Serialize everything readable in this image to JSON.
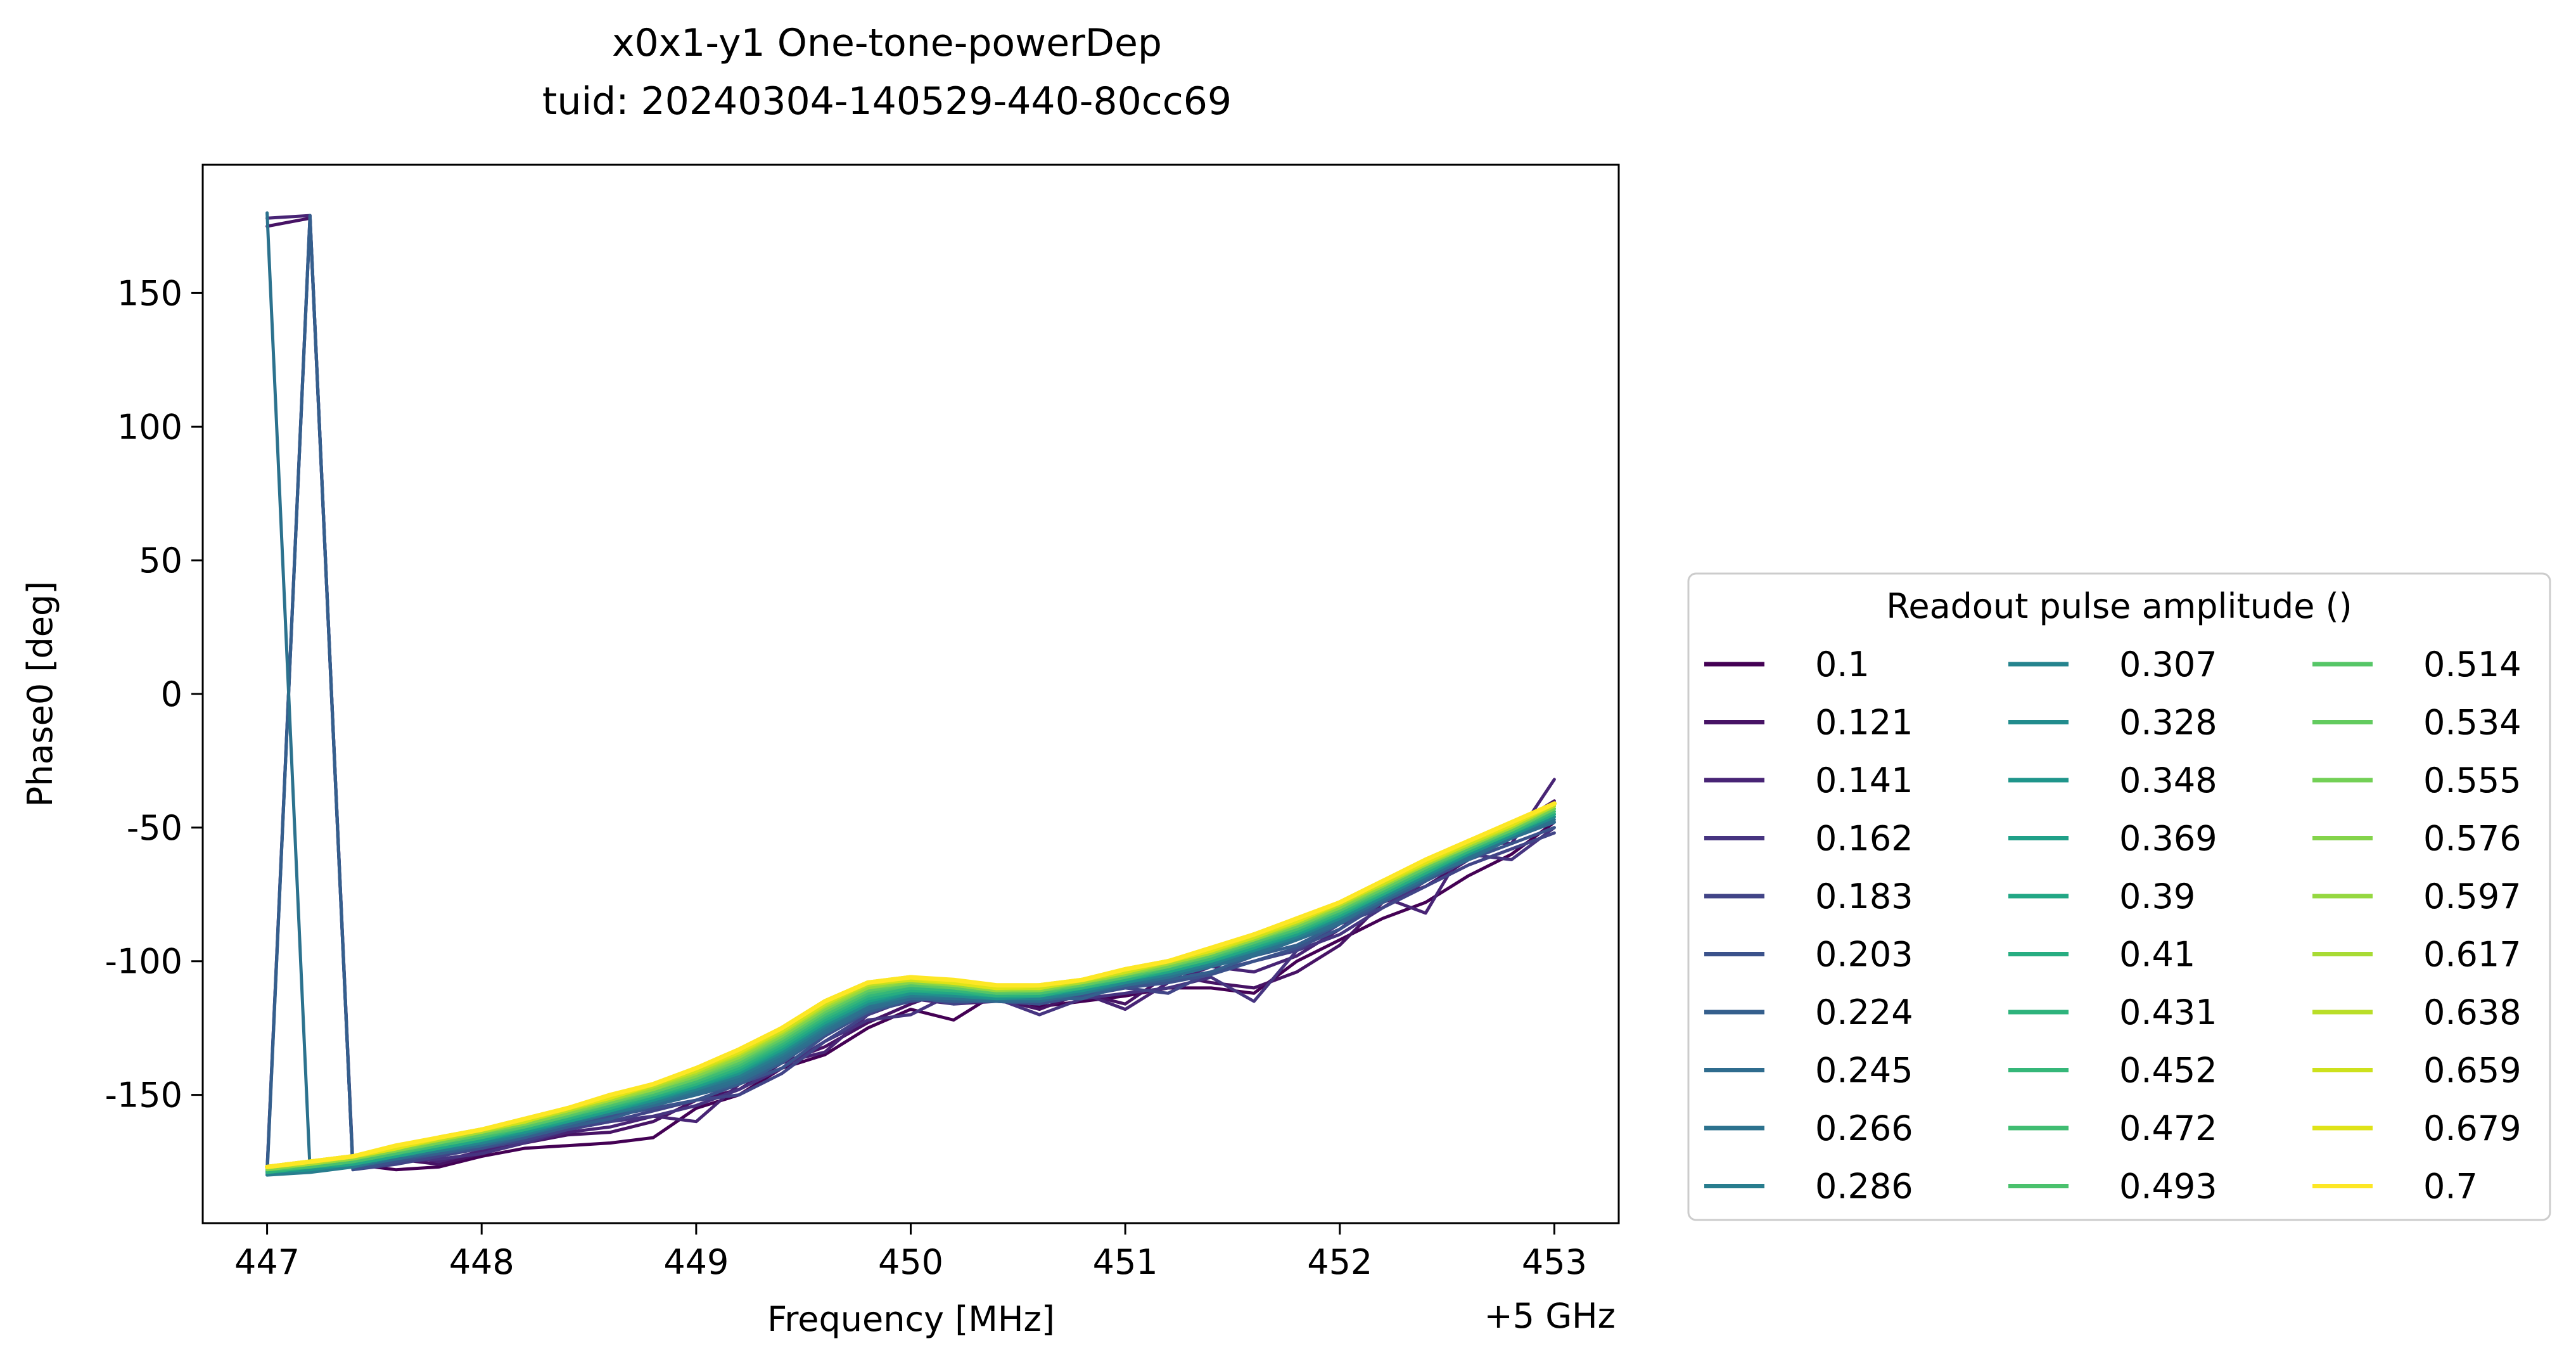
{
  "chart_data": {
    "type": "line",
    "title": "x0x1-y1 One-tone-powerDep",
    "subtitle": "tuid: 20240304-140529-440-80cc69",
    "xlabel": "Frequency [MHz]",
    "x_offset_label": "+5 GHz",
    "ylabel": "Phase0 [deg]",
    "xlim": [
      446.7,
      453.3
    ],
    "ylim": [
      -198,
      198
    ],
    "xticks": [
      447,
      448,
      449,
      450,
      451,
      452,
      453
    ],
    "xtick_labels": [
      "447",
      "448",
      "449",
      "450",
      "451",
      "452",
      "453"
    ],
    "yticks": [
      150,
      100,
      50,
      0,
      -50,
      -100,
      -150
    ],
    "ytick_labels": [
      "150",
      "100",
      "50",
      "0",
      "-50",
      "-100",
      "-150"
    ],
    "grid": false,
    "legend": {
      "title": "Readout pulse amplitude ()",
      "placement": "right, outside, lower",
      "columns": 3
    },
    "x": [
      447.0,
      447.2,
      447.4,
      447.6,
      447.8,
      448.0,
      448.2,
      448.4,
      448.6,
      448.8,
      449.0,
      449.2,
      449.4,
      449.6,
      449.8,
      450.0,
      450.2,
      450.4,
      450.6,
      450.8,
      451.0,
      451.2,
      451.4,
      451.6,
      451.8,
      452.0,
      452.2,
      452.4,
      452.6,
      452.8,
      453.0
    ],
    "series": [
      {
        "name": "0.1",
        "color": "#440154",
        "values": [
          -179,
          -178,
          -176,
          -178,
          -177,
          -173,
          -170,
          -169,
          -168,
          -166,
          -155,
          -150,
          -140,
          -135,
          -125,
          -118,
          -122,
          -112,
          -117,
          -115,
          -113,
          -110,
          -110,
          -112,
          -100,
          -92,
          -84,
          -78,
          -68,
          -60,
          -48
        ]
      },
      {
        "name": "0.121",
        "color": "#471365",
        "values": [
          175,
          178,
          -176,
          -174,
          -176,
          -172,
          -168,
          -165,
          -164,
          -160,
          -152,
          -148,
          -138,
          -132,
          -123,
          -116,
          -110,
          -114,
          -118,
          -112,
          -116,
          -105,
          -108,
          -110,
          -104,
          -94,
          -78,
          -72,
          -62,
          -50,
          -40
        ]
      },
      {
        "name": "0.141",
        "color": "#482475",
        "values": [
          178,
          179,
          -178,
          -172,
          -175,
          -171,
          -168,
          -164,
          -162,
          -158,
          -160,
          -146,
          -138,
          -134,
          -120,
          -114,
          -116,
          -115,
          -116,
          -112,
          -118,
          -108,
          -102,
          -104,
          -98,
          -88,
          -76,
          -82,
          -55,
          -56,
          -32
        ]
      },
      {
        "name": "0.162",
        "color": "#463480",
        "values": [
          -178,
          179,
          -177,
          -175,
          -174,
          -172,
          -168,
          -163,
          -160,
          -158,
          -154,
          -148,
          -140,
          -130,
          -122,
          -120,
          -112,
          -114,
          -120,
          -114,
          -112,
          -110,
          -106,
          -115,
          -96,
          -90,
          -80,
          -70,
          -60,
          -62,
          -50
        ]
      },
      {
        "name": "0.183",
        "color": "#414487",
        "values": [
          -178,
          178,
          -178,
          -176,
          -173,
          -170,
          -167,
          -163,
          -160,
          -156,
          -152,
          -150,
          -142,
          -130,
          -120,
          -113,
          -116,
          -114,
          -116,
          -112,
          -110,
          -112,
          -104,
          -100,
          -96,
          -86,
          -80,
          -72,
          -64,
          -58,
          -52
        ]
      },
      {
        "name": "0.203",
        "color": "#3b528b",
        "values": [
          -179,
          178,
          -178,
          -175,
          -172,
          -170,
          -166,
          -162,
          -158,
          -155,
          -152,
          -146,
          -140,
          -128,
          -119,
          -115,
          -113,
          -115,
          -116,
          -113,
          -110,
          -108,
          -105,
          -100,
          -95,
          -88,
          -78,
          -70,
          -62,
          -56,
          -50
        ]
      },
      {
        "name": "0.224",
        "color": "#355f8d",
        "values": [
          -180,
          179,
          -177,
          -174,
          -172,
          -169,
          -166,
          -162,
          -159,
          -154,
          -150,
          -146,
          -138,
          -127,
          -119,
          -114,
          -115,
          -115,
          -114,
          -114,
          -109,
          -107,
          -104,
          -98,
          -94,
          -86,
          -78,
          -70,
          -60,
          -54,
          -48
        ]
      },
      {
        "name": "0.245",
        "color": "#2f6c8e",
        "values": [
          -179,
          -178,
          -177,
          -174,
          -171,
          -169,
          -165,
          -161,
          -157,
          -154,
          -150,
          -145,
          -137,
          -127,
          -118,
          -114,
          -114,
          -115,
          -115,
          -112,
          -109,
          -106,
          -102,
          -98,
          -92,
          -86,
          -76,
          -68,
          -62,
          -54,
          -48
        ]
      },
      {
        "name": "0.266",
        "color": "#2c728e",
        "values": [
          180,
          -178,
          -176,
          -174,
          -171,
          -168,
          -165,
          -161,
          -157,
          -153,
          -149,
          -144,
          -136,
          -126,
          -117,
          -113,
          -114,
          -114,
          -114,
          -112,
          -108,
          -106,
          -102,
          -97,
          -92,
          -85,
          -77,
          -69,
          -61,
          -54,
          -47
        ]
      },
      {
        "name": "0.286",
        "color": "#287d8e",
        "values": [
          -180,
          -179,
          -177,
          -173,
          -171,
          -168,
          -165,
          -160,
          -157,
          -153,
          -148,
          -143,
          -135,
          -125,
          -116,
          -113,
          -113,
          -114,
          -114,
          -112,
          -108,
          -105,
          -101,
          -96,
          -91,
          -84,
          -76,
          -68,
          -60,
          -53,
          -46
        ]
      },
      {
        "name": "0.307",
        "color": "#25848e",
        "values": [
          -179,
          -178,
          -176,
          -173,
          -170,
          -168,
          -164,
          -160,
          -156,
          -152,
          -148,
          -142,
          -134,
          -124,
          -116,
          -112,
          -113,
          -114,
          -114,
          -111,
          -108,
          -105,
          -101,
          -96,
          -91,
          -84,
          -76,
          -68,
          -60,
          -53,
          -46
        ]
      },
      {
        "name": "0.328",
        "color": "#228c8d",
        "values": [
          -179,
          -178,
          -176,
          -173,
          -170,
          -167,
          -164,
          -160,
          -156,
          -152,
          -147,
          -142,
          -134,
          -124,
          -116,
          -112,
          -113,
          -114,
          -113,
          -111,
          -108,
          -104,
          -100,
          -96,
          -90,
          -84,
          -76,
          -68,
          -60,
          -53,
          -46
        ]
      },
      {
        "name": "0.348",
        "color": "#1f958b",
        "values": [
          -179,
          -178,
          -176,
          -173,
          -170,
          -167,
          -164,
          -160,
          -156,
          -152,
          -147,
          -142,
          -133,
          -123,
          -115,
          -112,
          -112,
          -114,
          -113,
          -111,
          -107,
          -104,
          -100,
          -95,
          -90,
          -83,
          -75,
          -67,
          -60,
          -53,
          -45
        ]
      },
      {
        "name": "0.369",
        "color": "#1fa088",
        "values": [
          -179,
          -177,
          -176,
          -173,
          -170,
          -167,
          -163,
          -160,
          -156,
          -151,
          -147,
          -141,
          -133,
          -123,
          -115,
          -111,
          -112,
          -113,
          -113,
          -110,
          -107,
          -104,
          -100,
          -95,
          -90,
          -83,
          -75,
          -67,
          -59,
          -52,
          -45
        ]
      },
      {
        "name": "0.39",
        "color": "#22a785",
        "values": [
          -179,
          -177,
          -176,
          -173,
          -170,
          -167,
          -163,
          -159,
          -155,
          -151,
          -146,
          -141,
          -132,
          -122,
          -114,
          -111,
          -112,
          -113,
          -113,
          -110,
          -107,
          -104,
          -100,
          -95,
          -89,
          -83,
          -75,
          -67,
          -59,
          -52,
          -45
        ]
      },
      {
        "name": "0.41",
        "color": "#27ad81",
        "values": [
          -179,
          -177,
          -175,
          -172,
          -169,
          -166,
          -163,
          -159,
          -155,
          -151,
          -146,
          -140,
          -132,
          -122,
          -114,
          -111,
          -111,
          -113,
          -113,
          -110,
          -107,
          -103,
          -99,
          -94,
          -89,
          -82,
          -75,
          -67,
          -59,
          -52,
          -45
        ]
      },
      {
        "name": "0.431",
        "color": "#2eb37c",
        "values": [
          -179,
          -177,
          -175,
          -172,
          -169,
          -166,
          -163,
          -159,
          -155,
          -150,
          -146,
          -140,
          -131,
          -121,
          -113,
          -110,
          -111,
          -113,
          -112,
          -110,
          -107,
          -103,
          -99,
          -94,
          -89,
          -82,
          -74,
          -66,
          -59,
          -52,
          -44
        ]
      },
      {
        "name": "0.452",
        "color": "#35b779",
        "values": [
          -178,
          -177,
          -175,
          -172,
          -169,
          -166,
          -162,
          -158,
          -154,
          -150,
          -145,
          -139,
          -131,
          -121,
          -113,
          -110,
          -111,
          -112,
          -112,
          -110,
          -106,
          -103,
          -99,
          -94,
          -88,
          -82,
          -74,
          -66,
          -58,
          -52,
          -44
        ]
      },
      {
        "name": "0.472",
        "color": "#40bd72",
        "values": [
          -178,
          -177,
          -175,
          -172,
          -169,
          -166,
          -162,
          -158,
          -154,
          -150,
          -145,
          -139,
          -130,
          -120,
          -112,
          -109,
          -110,
          -112,
          -112,
          -109,
          -106,
          -103,
          -99,
          -93,
          -88,
          -81,
          -74,
          -66,
          -58,
          -51,
          -44
        ]
      },
      {
        "name": "0.493",
        "color": "#4ac16d",
        "values": [
          -178,
          -177,
          -175,
          -172,
          -168,
          -165,
          -162,
          -158,
          -154,
          -149,
          -144,
          -138,
          -130,
          -120,
          -112,
          -109,
          -110,
          -112,
          -112,
          -109,
          -106,
          -102,
          -98,
          -93,
          -88,
          -81,
          -73,
          -65,
          -58,
          -51,
          -43
        ]
      },
      {
        "name": "0.514",
        "color": "#56c667",
        "values": [
          -178,
          -176,
          -174,
          -171,
          -168,
          -165,
          -162,
          -158,
          -153,
          -149,
          -144,
          -138,
          -129,
          -119,
          -111,
          -109,
          -110,
          -112,
          -111,
          -109,
          -106,
          -102,
          -98,
          -93,
          -87,
          -81,
          -73,
          -65,
          -58,
          -51,
          -43
        ]
      },
      {
        "name": "0.534",
        "color": "#63cb5f",
        "values": [
          -178,
          -176,
          -174,
          -171,
          -168,
          -165,
          -161,
          -157,
          -153,
          -149,
          -144,
          -137,
          -129,
          -119,
          -111,
          -108,
          -110,
          -111,
          -111,
          -109,
          -105,
          -102,
          -98,
          -92,
          -87,
          -80,
          -73,
          -65,
          -57,
          -51,
          -43
        ]
      },
      {
        "name": "0.555",
        "color": "#73d056",
        "values": [
          -178,
          -176,
          -174,
          -171,
          -168,
          -164,
          -161,
          -157,
          -153,
          -148,
          -143,
          -137,
          -128,
          -118,
          -110,
          -108,
          -109,
          -111,
          -111,
          -108,
          -105,
          -102,
          -97,
          -92,
          -87,
          -80,
          -72,
          -64,
          -57,
          -50,
          -43
        ]
      },
      {
        "name": "0.576",
        "color": "#84d44b",
        "values": [
          -178,
          -176,
          -174,
          -171,
          -167,
          -164,
          -161,
          -157,
          -152,
          -148,
          -143,
          -136,
          -128,
          -118,
          -110,
          -108,
          -109,
          -111,
          -111,
          -108,
          -105,
          -101,
          -97,
          -92,
          -86,
          -80,
          -72,
          -64,
          -57,
          -50,
          -42
        ]
      },
      {
        "name": "0.597",
        "color": "#95d840",
        "values": [
          -177,
          -176,
          -174,
          -170,
          -167,
          -164,
          -160,
          -156,
          -152,
          -148,
          -142,
          -136,
          -127,
          -117,
          -110,
          -107,
          -109,
          -111,
          -110,
          -108,
          -105,
          -101,
          -97,
          -92,
          -86,
          -79,
          -72,
          -64,
          -57,
          -50,
          -42
        ]
      },
      {
        "name": "0.617",
        "color": "#a8db34",
        "values": [
          -177,
          -176,
          -173,
          -170,
          -167,
          -164,
          -160,
          -156,
          -152,
          -147,
          -142,
          -135,
          -127,
          -117,
          -109,
          -107,
          -108,
          -110,
          -110,
          -108,
          -104,
          -101,
          -97,
          -91,
          -86,
          -79,
          -71,
          -64,
          -56,
          -50,
          -42
        ]
      },
      {
        "name": "0.638",
        "color": "#bade28",
        "values": [
          -177,
          -175,
          -173,
          -170,
          -167,
          -163,
          -160,
          -156,
          -151,
          -147,
          -141,
          -135,
          -126,
          -116,
          -109,
          -107,
          -108,
          -110,
          -110,
          -107,
          -104,
          -100,
          -96,
          -91,
          -85,
          -79,
          -71,
          -63,
          -56,
          -49,
          -42
        ]
      },
      {
        "name": "0.659",
        "color": "#cde11d",
        "values": [
          -177,
          -175,
          -173,
          -170,
          -166,
          -163,
          -160,
          -155,
          -151,
          -146,
          -141,
          -134,
          -126,
          -116,
          -108,
          -107,
          -108,
          -110,
          -110,
          -107,
          -104,
          -100,
          -96,
          -91,
          -85,
          -78,
          -71,
          -63,
          -56,
          -49,
          -41
        ]
      },
      {
        "name": "0.679",
        "color": "#dfe318",
        "values": [
          -177,
          -175,
          -173,
          -170,
          -166,
          -163,
          -159,
          -155,
          -151,
          -146,
          -140,
          -134,
          -125,
          -115,
          -108,
          -106,
          -108,
          -110,
          -109,
          -107,
          -103,
          -100,
          -96,
          -90,
          -85,
          -78,
          -70,
          -63,
          -55,
          -49,
          -41
        ]
      },
      {
        "name": "0.7",
        "color": "#fde725",
        "values": [
          -177,
          -175,
          -173,
          -169,
          -166,
          -163,
          -159,
          -155,
          -150,
          -146,
          -140,
          -133,
          -125,
          -115,
          -108,
          -106,
          -107,
          -109,
          -109,
          -107,
          -103,
          -100,
          -95,
          -90,
          -84,
          -78,
          -70,
          -62,
          -55,
          -48,
          -41
        ]
      }
    ]
  }
}
